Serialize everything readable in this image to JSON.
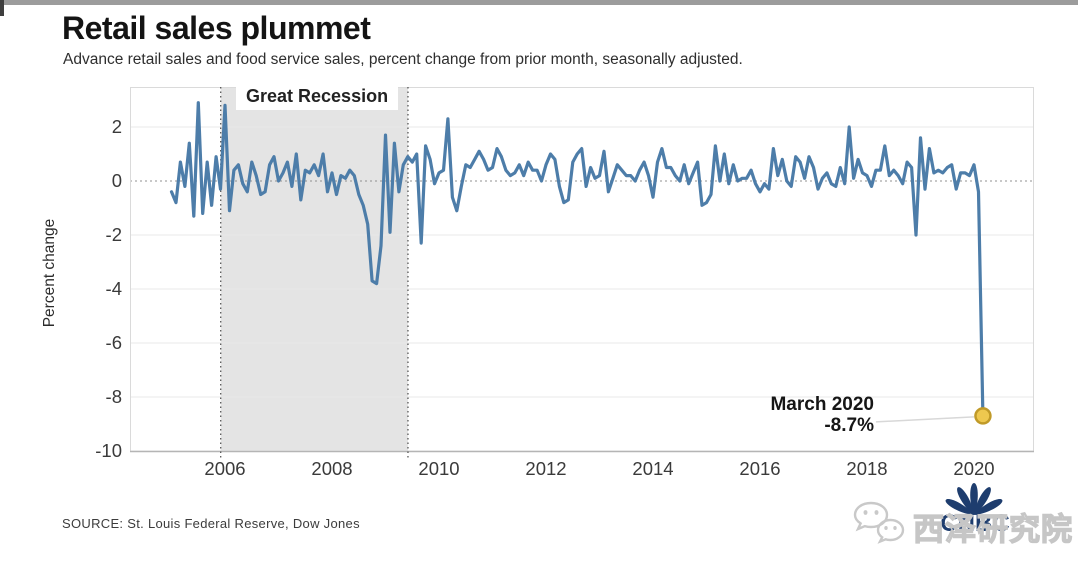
{
  "header": {
    "title": "Retail sales plummet",
    "subtitle": "Advance retail sales and food service sales, percent change from prior month, seasonally adjusted."
  },
  "chart_data": {
    "type": "line",
    "title": "Retail sales plummet",
    "ylabel": "Percent change",
    "xlim": [
      2004.95,
      2020.45
    ],
    "ylim": [
      -10.4,
      3.3
    ],
    "x_ticks": [
      2006,
      2008,
      2010,
      2012,
      2014,
      2016,
      2018,
      2020
    ],
    "y_ticks": [
      2,
      0,
      -2,
      -4,
      -6,
      -8,
      -10
    ],
    "grid": "horizontal, light gray; zero line dotted",
    "legend": "none",
    "recession_band": {
      "label": "Great Recession",
      "start_year": 2005.92,
      "end_year": 2009.42,
      "color": "#e4e4e4"
    },
    "series": [
      {
        "name": "Percent change from prior month",
        "frequency": "monthly",
        "start": "2005-01",
        "end": "2020-03",
        "values": [
          -0.4,
          -0.8,
          0.7,
          -0.2,
          1.4,
          -1.3,
          2.9,
          -1.2,
          0.7,
          -0.9,
          0.9,
          -0.3,
          2.8,
          -1.1,
          0.4,
          0.6,
          -0.1,
          -0.4,
          0.7,
          0.2,
          -0.5,
          -0.4,
          0.6,
          0.9,
          0.0,
          0.3,
          0.7,
          -0.2,
          1.0,
          -0.7,
          0.4,
          0.3,
          0.6,
          0.2,
          1.0,
          -0.4,
          0.3,
          -0.5,
          0.2,
          0.1,
          0.4,
          0.2,
          -0.5,
          -0.9,
          -1.6,
          -3.7,
          -3.8,
          -2.4,
          1.7,
          -1.9,
          1.4,
          -0.4,
          0.6,
          0.9,
          0.7,
          1.0,
          -2.3,
          1.3,
          0.8,
          -0.1,
          0.3,
          0.4,
          2.3,
          -0.6,
          -1.1,
          -0.2,
          0.6,
          0.5,
          0.8,
          1.1,
          0.8,
          0.4,
          0.5,
          1.2,
          0.9,
          0.4,
          0.2,
          0.3,
          0.6,
          0.2,
          0.7,
          0.4,
          0.4,
          0.0,
          0.6,
          1.0,
          0.8,
          -0.2,
          -0.8,
          -0.7,
          0.7,
          1.0,
          1.2,
          -0.2,
          0.5,
          0.1,
          0.2,
          1.1,
          -0.4,
          0.1,
          0.6,
          0.4,
          0.2,
          0.2,
          0.0,
          0.4,
          0.7,
          0.2,
          -0.6,
          0.7,
          1.2,
          0.5,
          0.5,
          0.2,
          0.0,
          0.6,
          -0.1,
          0.3,
          0.7,
          -0.9,
          -0.8,
          -0.5,
          1.3,
          0.0,
          1.0,
          -0.1,
          0.6,
          0.0,
          0.1,
          0.1,
          0.4,
          -0.1,
          -0.4,
          -0.1,
          -0.3,
          1.2,
          0.2,
          0.8,
          0.0,
          -0.2,
          0.9,
          0.7,
          0.1,
          0.9,
          0.5,
          -0.3,
          0.1,
          0.3,
          -0.1,
          -0.2,
          0.5,
          -0.1,
          2.0,
          0.1,
          0.8,
          0.3,
          0.2,
          -0.2,
          0.4,
          0.4,
          1.3,
          0.2,
          0.4,
          0.2,
          -0.1,
          0.7,
          0.5,
          -2.0,
          1.6,
          -0.3,
          1.2,
          0.3,
          0.4,
          0.3,
          0.5,
          0.6,
          -0.3,
          0.3,
          0.3,
          0.2,
          0.6,
          -0.4,
          -8.7
        ]
      }
    ],
    "annotation": {
      "line1": "March 2020",
      "line2": "-8.7%",
      "x_year": 2020.167,
      "y_value": -8.7
    },
    "colors": {
      "line": "#4d7da9",
      "marker_fill": "#eec84f",
      "marker_stroke": "#c09a28",
      "band": "#e4e4e4",
      "grid": "#e9e9e9",
      "zero_line": "#909090",
      "axis": "#b5b5b5"
    }
  },
  "footer": {
    "source": "SOURCE: St. Louis Federal Reserve, Dow Jones"
  },
  "branding": {
    "network_wordmark": "CNBC",
    "network_color": "#1e3d6e",
    "watermark_text": "西泽研究院",
    "watermark_icon": "wechat-icon",
    "watermark_color": "#c6c6c6"
  }
}
